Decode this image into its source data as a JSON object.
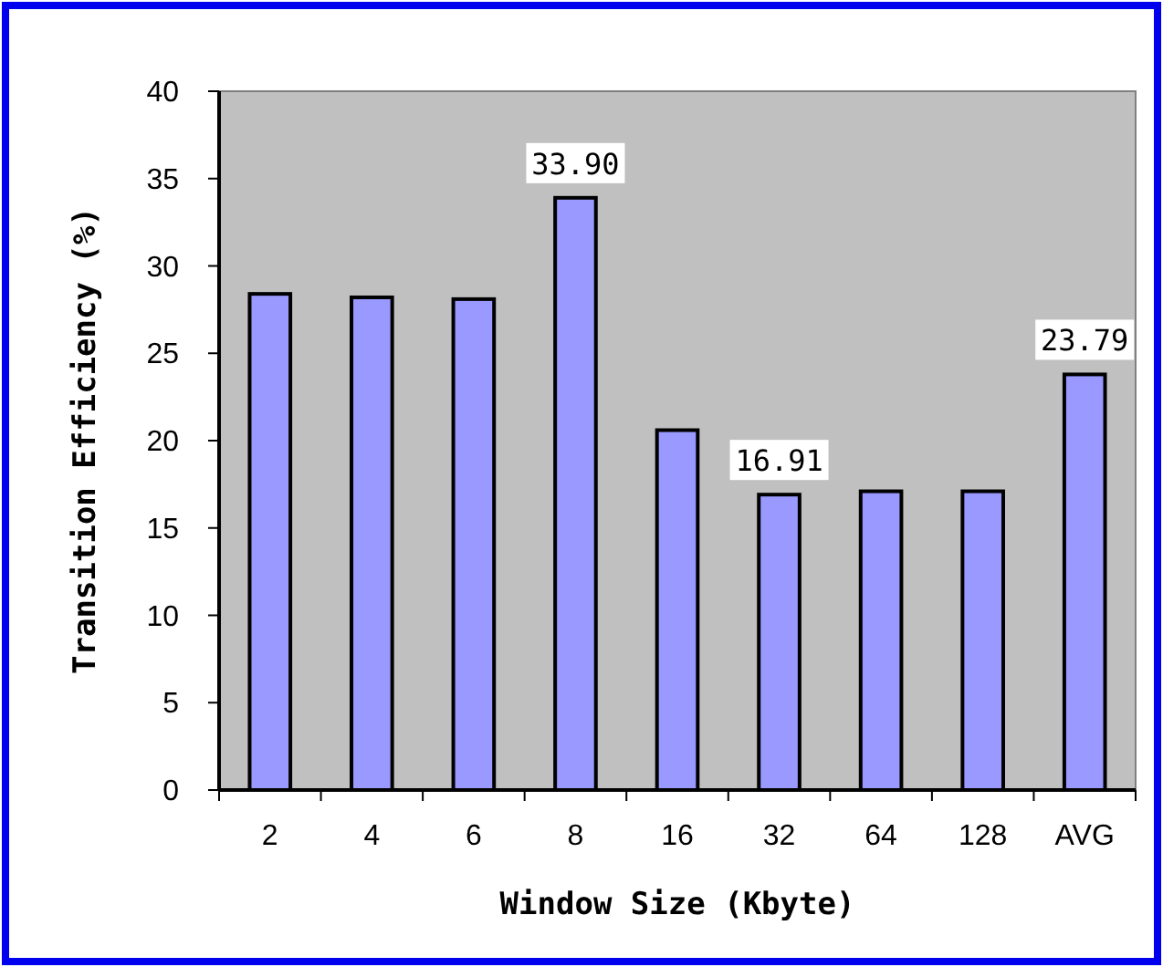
{
  "chart_data": {
    "type": "bar",
    "xlabel": "Window Size (Kbyte)",
    "ylabel": "Transition Efficiency (%)",
    "categories": [
      "2",
      "4",
      "6",
      "8",
      "16",
      "32",
      "64",
      "128",
      "AVG"
    ],
    "values": [
      28.4,
      28.2,
      28.1,
      33.9,
      20.6,
      16.91,
      17.1,
      17.1,
      23.79
    ],
    "value_labels": [
      null,
      null,
      null,
      "33.90",
      null,
      "16.91",
      null,
      null,
      "23.79"
    ],
    "color": "#9999ff",
    "ylim": [
      0,
      40
    ],
    "yticks": [
      0,
      5,
      10,
      15,
      20,
      25,
      30,
      35,
      40
    ],
    "grid": false
  }
}
